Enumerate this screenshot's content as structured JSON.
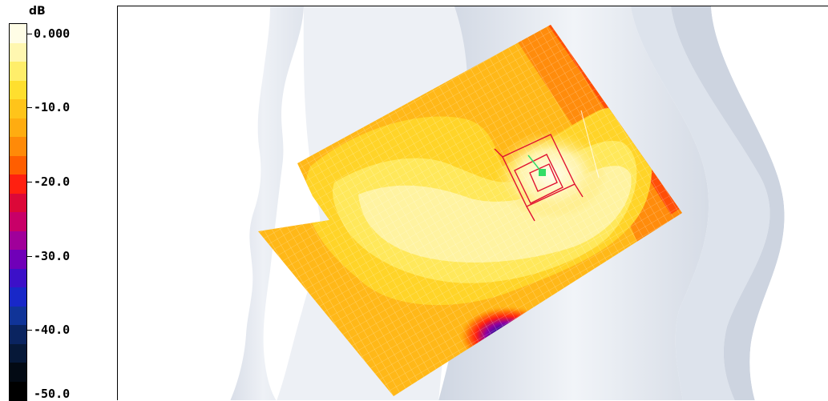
{
  "legend": {
    "unit": "dB",
    "labels": [
      "0.000",
      "-10.0",
      "-20.0",
      "-30.0",
      "-40.0",
      "-50.0"
    ],
    "colors": [
      "#fffde6",
      "#fff7b0",
      "#ffee6a",
      "#ffdf2e",
      "#ffc41a",
      "#ffac10",
      "#ff8a08",
      "#ff5e00",
      "#ff2010",
      "#dc0838",
      "#c80068",
      "#a0009a",
      "#7000b8",
      "#3c10c8",
      "#1828c8",
      "#103498",
      "#0a2460",
      "#061838",
      "#030a14",
      "#000000"
    ]
  },
  "viewport": {
    "background": "#ffffff",
    "phantom_color": "#e6eaf1",
    "grid_color": "#ffffff",
    "probe_color": "#e01030",
    "marker_color": "#33dd66"
  }
}
